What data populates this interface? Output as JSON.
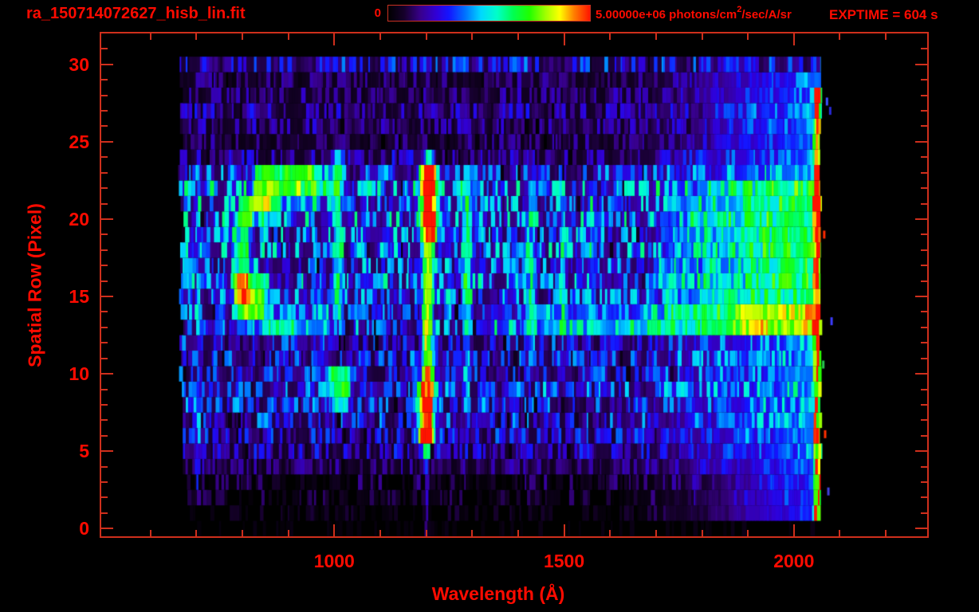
{
  "window": {
    "bg": "#000000",
    "text_color": "#ff0b00",
    "frame_color": "#cf2f1c"
  },
  "header": {
    "title": "ra_150714072627_hisb_lin.fit",
    "exptime": "EXPTIME = 604 s",
    "colorbar": {
      "min_label": "0",
      "max_label_prefix": "5.00000e+06 photons/cm",
      "max_label_sup": "2",
      "max_label_suffix": "/sec/A/sr"
    }
  },
  "chart_data": {
    "type": "heatmap",
    "title": "ra_150714072627_hisb_lin.fit",
    "xlabel": "Wavelength (Å)",
    "ylabel": "Spatial Row (Pixel)",
    "xlim": [
      493,
      2290
    ],
    "ylim": [
      -0.5,
      32
    ],
    "x_major_ticks": [
      1000,
      1500,
      2000
    ],
    "x_minor_step": 100,
    "y_major_ticks": [
      0,
      5,
      10,
      15,
      20,
      25,
      30
    ],
    "y_minor_step": 1,
    "grid": false,
    "colorbar": {
      "min_value": 0,
      "max_value": "5.00000e+06",
      "units": "photons/cm^2/sec/A/sr",
      "position": "top"
    },
    "exptime_seconds": 604,
    "colormap_stops": [
      [
        0.0,
        "#000000"
      ],
      [
        0.08,
        "#16002c"
      ],
      [
        0.16,
        "#38008c"
      ],
      [
        0.24,
        "#3000d8"
      ],
      [
        0.3,
        "#1414ff"
      ],
      [
        0.38,
        "#0070ff"
      ],
      [
        0.46,
        "#00d8ff"
      ],
      [
        0.54,
        "#00ffc8"
      ],
      [
        0.62,
        "#00ff50"
      ],
      [
        0.7,
        "#20ff00"
      ],
      [
        0.78,
        "#a0ff00"
      ],
      [
        0.85,
        "#ffff00"
      ],
      [
        0.92,
        "#ff8000"
      ],
      [
        1.0,
        "#ff1400"
      ]
    ],
    "data_extent": {
      "lambda": [
        660,
        2058
      ],
      "rows": [
        0,
        30.5
      ]
    },
    "row_base_intensity": [
      0.03,
      0.07,
      0.1,
      0.13,
      0.17,
      0.24,
      0.28,
      0.31,
      0.33,
      0.36,
      0.3,
      0.32,
      0.3,
      0.38,
      0.36,
      0.4,
      0.42,
      0.38,
      0.42,
      0.4,
      0.44,
      0.42,
      0.46,
      0.34,
      0.22,
      0.15,
      0.19,
      0.22,
      0.17,
      0.16,
      0.3
    ],
    "features": {
      "vertical_lines": [
        {
          "name": "lyman-alpha-upper-core",
          "lc": 1206,
          "hw": 21,
          "r0": 18.5,
          "r1": 23.4,
          "amp": 1.02
        },
        {
          "name": "lyman-alpha-mid",
          "lc": 1203,
          "hw": 13,
          "r0": 9.6,
          "r1": 18.5,
          "amp": 0.74
        },
        {
          "name": "lyman-alpha-lower-core",
          "lc": 1200,
          "hw": 19,
          "r0": 5.6,
          "r1": 9.6,
          "amp": 1.02
        },
        {
          "name": "lyman-alpha-top-tip",
          "lc": 1206,
          "hw": 11,
          "r0": 23.4,
          "r1": 24.3,
          "amp": 0.55
        },
        {
          "name": "lyman-alpha-bottom-tip",
          "lc": 1200,
          "hw": 9,
          "r0": 4.6,
          "r1": 5.6,
          "amp": 0.5
        },
        {
          "name": "lyman-alpha-leak",
          "lc": 1201,
          "hw": 5,
          "r0": -0.2,
          "r1": 4.6,
          "amp": 0.17
        },
        {
          "name": "oi-1300",
          "lc": 1289,
          "hw": 11,
          "r0": 13.5,
          "r1": 23.0,
          "amp": 0.42
        },
        {
          "name": "oi-1300-low",
          "lc": 1289,
          "hw": 8,
          "r0": 7.5,
          "r1": 13.5,
          "amp": 0.3
        },
        {
          "name": "line-1425",
          "lc": 1428,
          "hw": 9,
          "r0": 12.0,
          "r1": 22.5,
          "amp": 0.32
        },
        {
          "name": "line-1495",
          "lc": 1497,
          "hw": 8,
          "r0": 12.5,
          "r1": 22.0,
          "amp": 0.24
        },
        {
          "name": "line-1560",
          "lc": 1562,
          "hw": 8,
          "r0": 13.0,
          "r1": 22.0,
          "amp": 0.2
        },
        {
          "name": "ring-right-stroke",
          "lc": 1008,
          "hw": 10,
          "r0": 13.5,
          "r1": 24.0,
          "amp": 0.4
        },
        {
          "name": "left-faint-line",
          "lc": 703,
          "hw": 4,
          "r0": 2.0,
          "r1": 22.0,
          "amp": 0.22
        },
        {
          "name": "detector-edge-line",
          "lc": 2051,
          "hw": 8,
          "r0": 0.8,
          "r1": 28.5,
          "amp": 0.55,
          "noisy": true
        }
      ],
      "blobs": [
        {
          "name": "ring-top-arc",
          "l0": 828,
          "l1": 958,
          "r0": 21.3,
          "r1": 23.3,
          "ampL": 0.6,
          "ampR": 0.55
        },
        {
          "name": "ring-top-arc-tail",
          "l0": 955,
          "l1": 1000,
          "r0": 21.4,
          "r1": 22.8,
          "ampL": 0.35,
          "ampR": 0.3
        },
        {
          "name": "ring-second-arc",
          "l0": 803,
          "l1": 868,
          "r0": 20.2,
          "r1": 21.5,
          "ampL": 0.55,
          "ampR": 0.5
        },
        {
          "name": "ring-left-side",
          "l0": 785,
          "l1": 813,
          "r0": 14.4,
          "r1": 20.6,
          "ampL": 0.5,
          "ampR": 0.5
        },
        {
          "name": "ring-bottom-arc",
          "l0": 789,
          "l1": 852,
          "r0": 13.3,
          "r1": 16.1,
          "ampL": 0.62,
          "ampR": 0.55
        },
        {
          "name": "ring-bottom-tail",
          "l0": 850,
          "l1": 992,
          "r0": 12.5,
          "r1": 13.8,
          "ampL": 0.35,
          "ampR": 0.28
        },
        {
          "name": "stroke-bottom-blob",
          "l0": 983,
          "l1": 1032,
          "r0": 8.3,
          "r1": 10.2,
          "ampL": 0.48,
          "ampR": 0.48
        },
        {
          "name": "continuum-row-band",
          "l0": 1320,
          "l1": 2052,
          "r0": 12.6,
          "r1": 13.9,
          "ampL": 0.16,
          "ampR": 0.5
        },
        {
          "name": "continuum-orange-patch",
          "l0": 1860,
          "l1": 1945,
          "r0": 12.6,
          "r1": 13.9,
          "ampL": 0.14,
          "ampR": 0.14
        },
        {
          "name": "right-green-upper",
          "l0": 1720,
          "l1": 2052,
          "r0": 13.9,
          "r1": 22.5,
          "ampL": 0.15,
          "ampR": 0.25
        }
      ],
      "right_ramp": {
        "l0": 1600,
        "l1": 2052,
        "r0": 0.8,
        "r1": 30.0,
        "max_add": 0.3
      },
      "specks": [
        {
          "lambda": 2066,
          "row": 19.0,
          "color": "#ff2a00"
        },
        {
          "lambda": 2072,
          "row": 27.6,
          "color": "#3c50ff"
        },
        {
          "lambda": 2079,
          "row": 27.0,
          "color": "#2828d8"
        },
        {
          "lambda": 2082,
          "row": 13.4,
          "color": "#3c3cff"
        },
        {
          "lambda": 2068,
          "row": 6.1,
          "color": "#ff3000"
        },
        {
          "lambda": 2075,
          "row": 2.4,
          "color": "#4040e0"
        },
        {
          "lambda": 2064,
          "row": 10.6,
          "color": "#28c850"
        }
      ]
    },
    "noise": {
      "seed": 42,
      "strip_min_A": 3,
      "strip_max_A": 10,
      "streak_prob": 0.08
    }
  }
}
